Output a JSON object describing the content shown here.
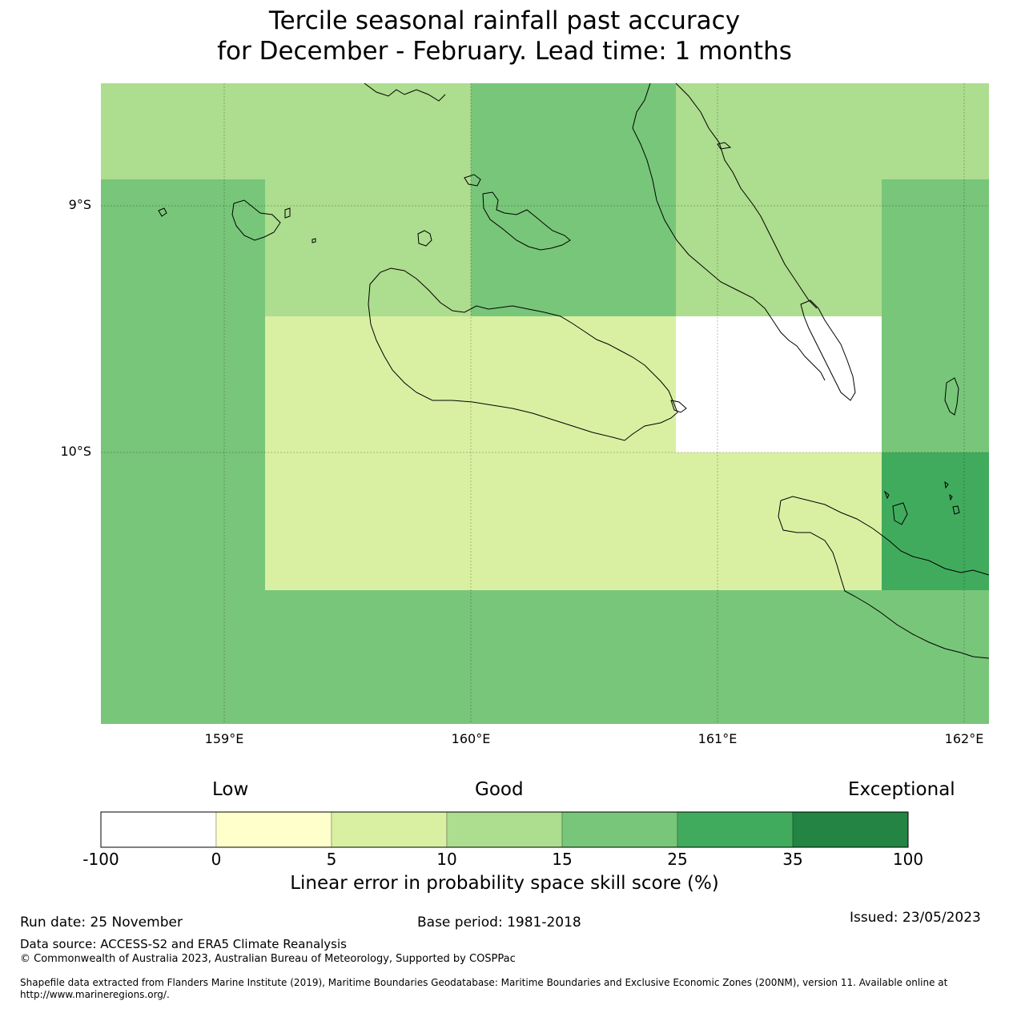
{
  "title": {
    "line1": "Tercile seasonal rainfall past accuracy",
    "line2": "for December - February. Lead time: 1 months"
  },
  "map": {
    "lat_labels": [
      "9°S",
      "10°S"
    ],
    "lon_labels": [
      "159°E",
      "160°E",
      "161°E",
      "162°E"
    ],
    "colors": {
      "white": "#ffffff",
      "yellow": "#ffffcc",
      "light_yellow_green": "#d9f0a3",
      "light_green": "#addd8e",
      "medium_green": "#78c679",
      "green": "#41ab5d",
      "dark_green": "#238443"
    }
  },
  "colorbar": {
    "category_labels": [
      "Low",
      "Good",
      "Exceptional"
    ],
    "ticks": [
      "-100",
      "0",
      "5",
      "10",
      "15",
      "25",
      "35",
      "100"
    ],
    "colors": [
      "#ffffff",
      "#ffffcc",
      "#d9f0a3",
      "#addd8e",
      "#78c679",
      "#41ab5d",
      "#238443"
    ],
    "label": "Linear error in probability space skill score (%)"
  },
  "footer": {
    "run_date": "Run date: 25 November",
    "base_period": "Base period: 1981-2018",
    "issued": "Issued: 23/05/2023",
    "data_source": "Data source: ACCESS-S2 and ERA5 Climate Reanalysis",
    "copyright": "© Commonwealth of Australia 2023, Australian Bureau of Meteorology, Supported by COSPPac",
    "shapefile": "Shapefile data extracted from Flanders Marine Institute (2019), Maritime Boundaries Geodatabase: Maritime Boundaries and Exclusive Economic Zones (200NM), version 11. Available online at http://www.marineregions.org/."
  }
}
